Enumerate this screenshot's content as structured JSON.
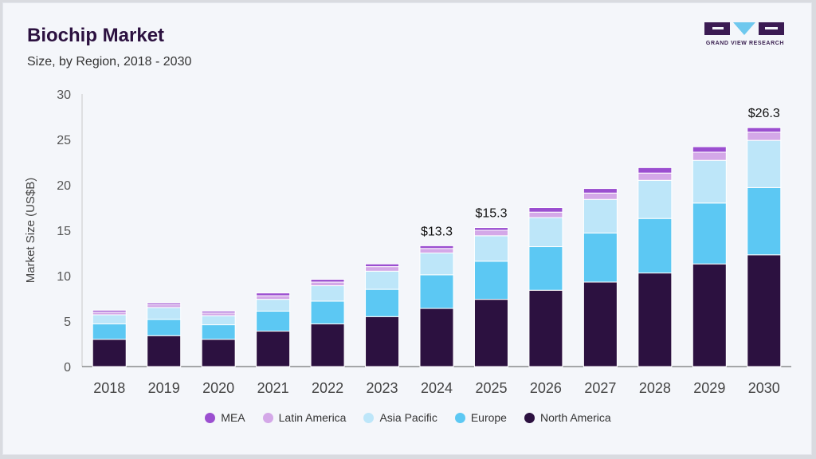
{
  "header": {
    "title": "Biochip Market",
    "subtitle": "Size, by Region, 2018 - 2030"
  },
  "logo": {
    "text": "GRAND VIEW RESEARCH",
    "colors": {
      "dark": "#3b1b53",
      "accent": "#6ec8ee"
    }
  },
  "chart_data": {
    "type": "bar",
    "stacked": true,
    "categories": [
      "2018",
      "2019",
      "2020",
      "2021",
      "2022",
      "2023",
      "2024",
      "2025",
      "2026",
      "2027",
      "2028",
      "2029",
      "2030"
    ],
    "ylabel": "Market Size (US$B)",
    "xlabel": "",
    "ylim": [
      0,
      30
    ],
    "yticks": [
      0,
      5,
      10,
      15,
      20,
      25,
      30
    ],
    "grid": false,
    "legend_position": "bottom",
    "series": [
      {
        "name": "North America",
        "color": "#2c1140",
        "values": [
          3.0,
          3.4,
          3.0,
          3.9,
          4.7,
          5.5,
          6.4,
          7.4,
          8.4,
          9.3,
          10.3,
          11.3,
          12.3
        ]
      },
      {
        "name": "Europe",
        "color": "#5cc8f3",
        "values": [
          1.7,
          1.8,
          1.6,
          2.2,
          2.5,
          3.0,
          3.7,
          4.2,
          4.8,
          5.4,
          6.0,
          6.7,
          7.4
        ]
      },
      {
        "name": "Asia Pacific",
        "color": "#bde6f9",
        "values": [
          1.0,
          1.3,
          1.0,
          1.3,
          1.7,
          2.0,
          2.4,
          2.8,
          3.2,
          3.7,
          4.2,
          4.7,
          5.2
        ]
      },
      {
        "name": "Latin America",
        "color": "#d4a8e8",
        "values": [
          0.3,
          0.3,
          0.3,
          0.4,
          0.4,
          0.5,
          0.5,
          0.6,
          0.6,
          0.7,
          0.8,
          0.9,
          0.9
        ]
      },
      {
        "name": "MEA",
        "color": "#9b4fd0",
        "values": [
          0.2,
          0.2,
          0.2,
          0.3,
          0.3,
          0.3,
          0.3,
          0.3,
          0.5,
          0.5,
          0.6,
          0.6,
          0.5
        ]
      }
    ],
    "legend_order": [
      "MEA",
      "Latin America",
      "Asia Pacific",
      "Europe",
      "North America"
    ],
    "annotations": [
      {
        "category": "2024",
        "text": "$13.3"
      },
      {
        "category": "2025",
        "text": "$15.3"
      },
      {
        "category": "2030",
        "text": "$26.3"
      }
    ]
  }
}
